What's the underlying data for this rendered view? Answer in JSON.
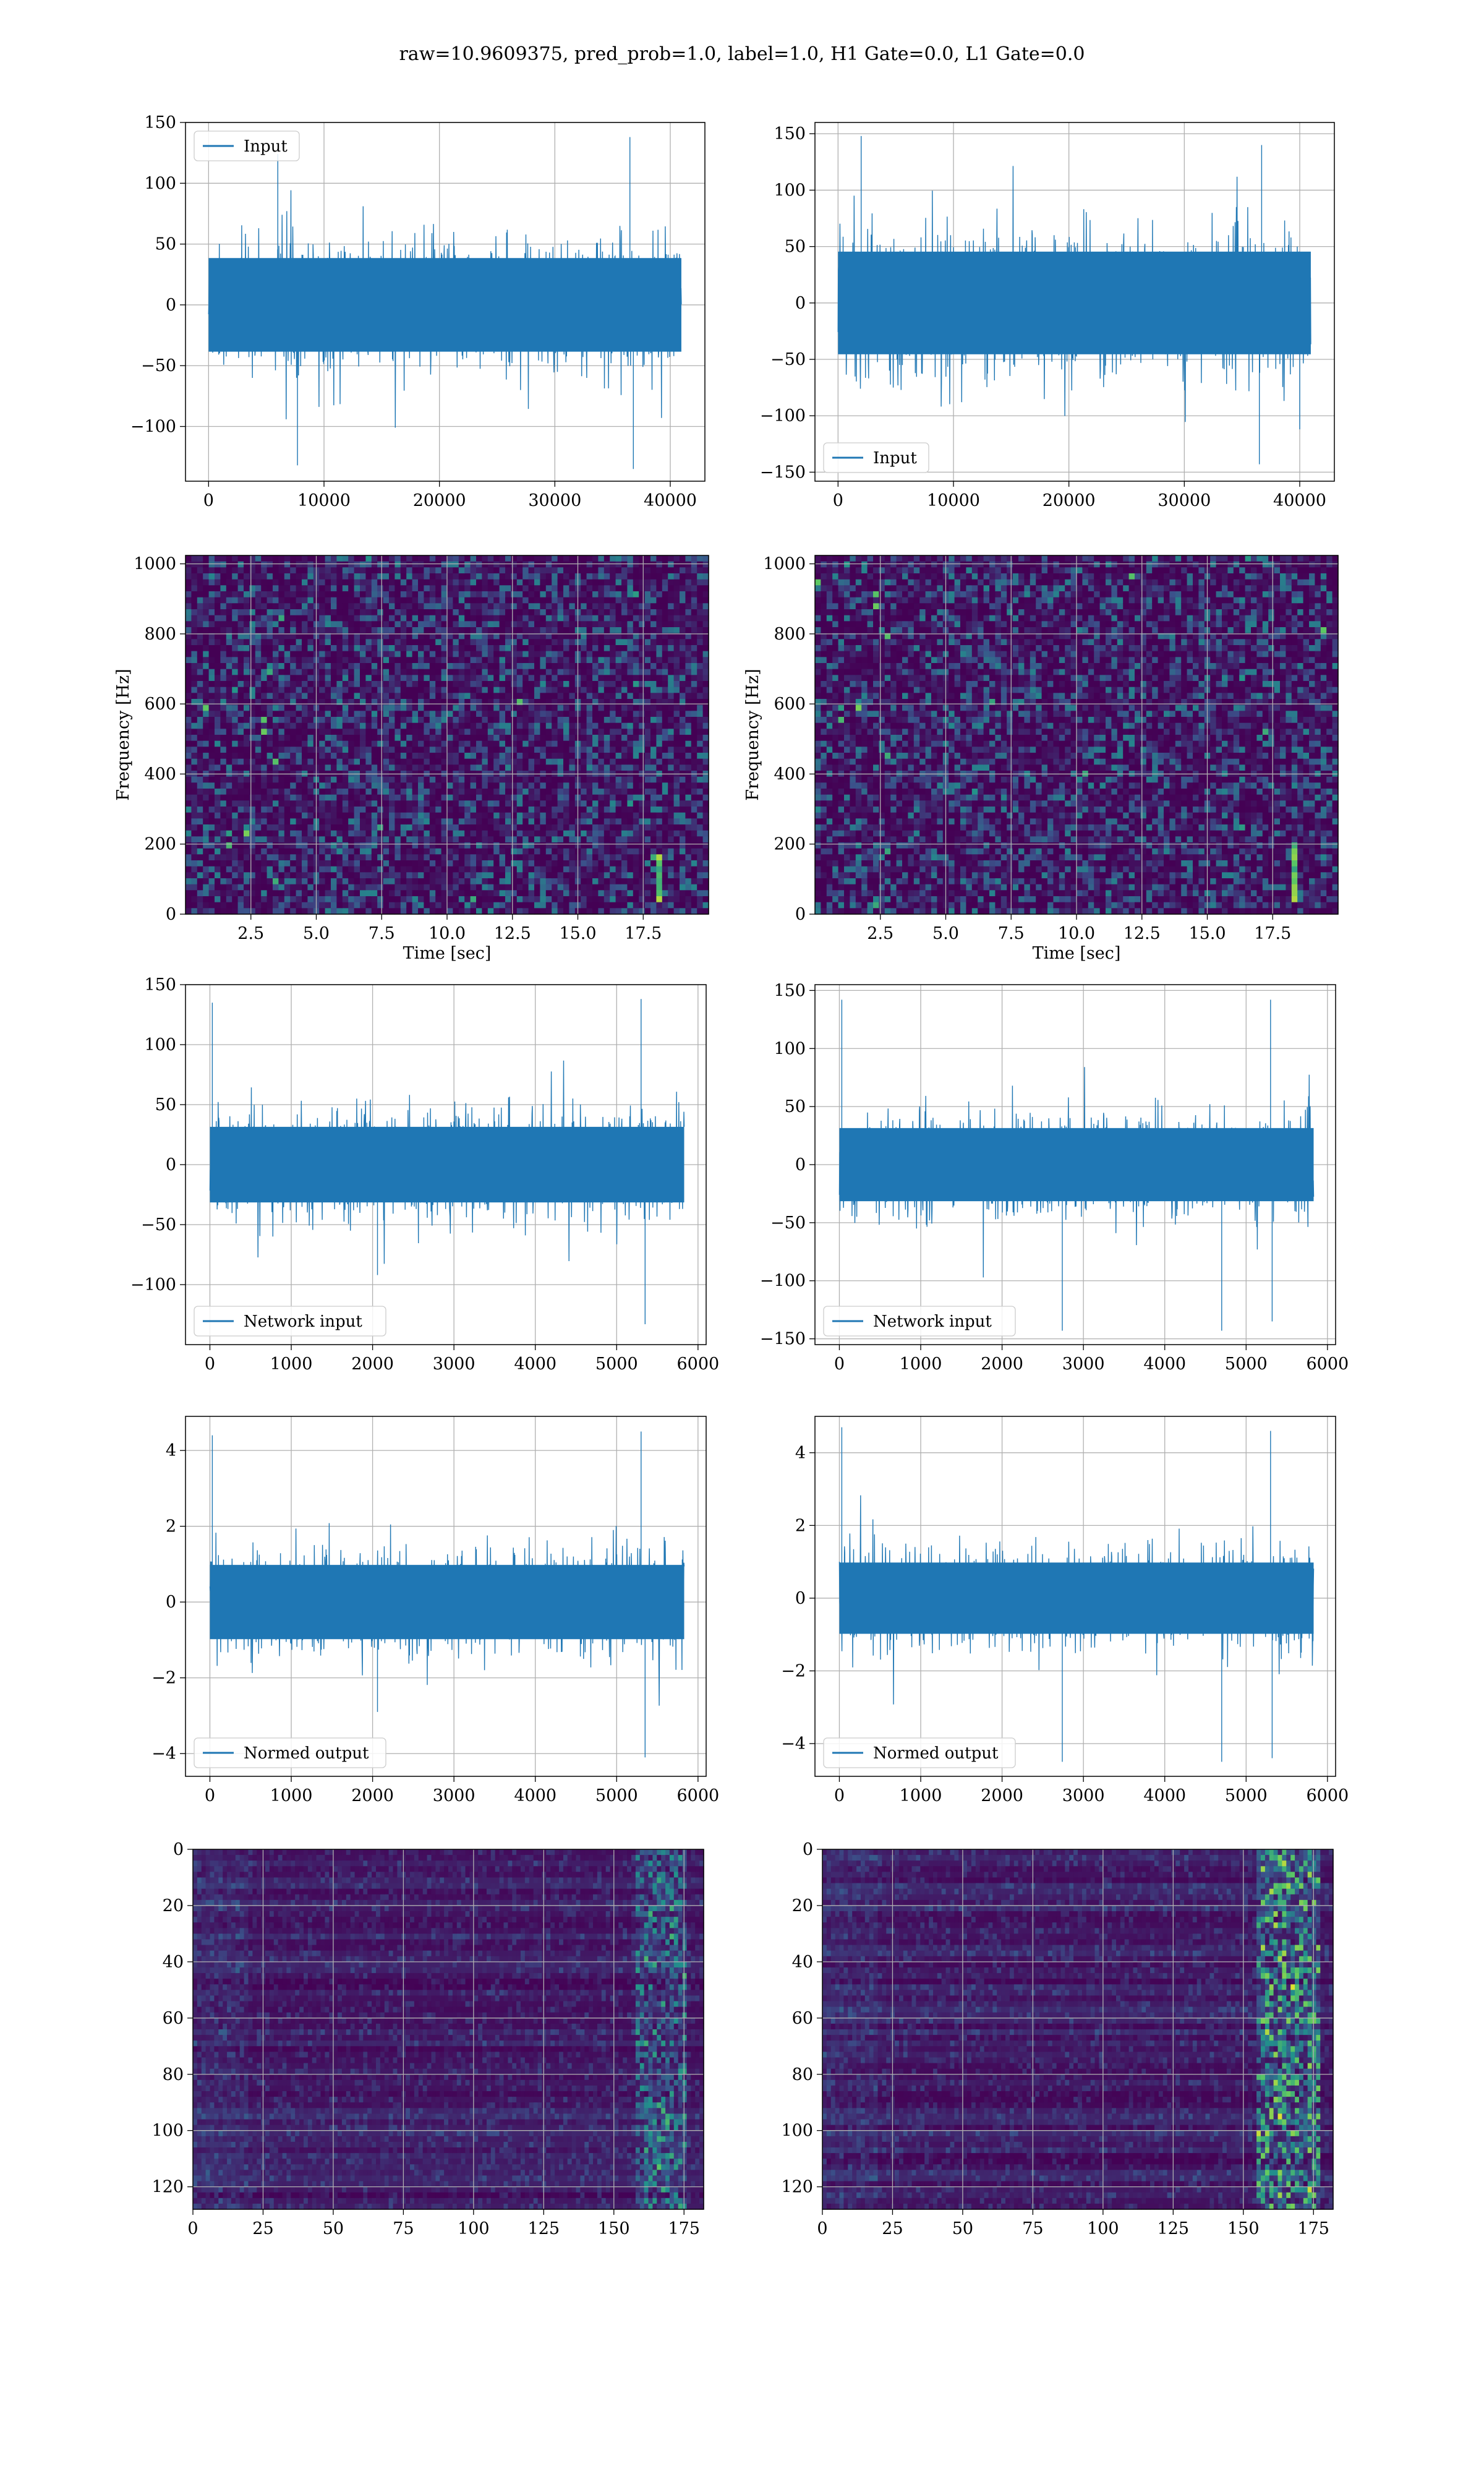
{
  "figure": {
    "suptitle": "raw=10.9609375, pred_prob=1.0, label=1.0, H1 Gate=0.0, L1 Gate=0.0"
  },
  "colors": {
    "line": "#1f77b4",
    "grid": "#b0b0b0",
    "viridis_dark": "#440154",
    "viridis_mid": "#21918c",
    "viridis_light": "#5ec962",
    "viridis_yellow": "#fde725"
  },
  "chart_data": [
    {
      "id": "h1-input",
      "type": "line",
      "title": "",
      "xlabel": "",
      "ylabel": "",
      "legend": "top-left",
      "series": [
        {
          "name": "Input",
          "x_range": [
            0,
            40960
          ],
          "envelope_typical": [
            -55,
            55
          ],
          "peaks": [
            [
              6000,
              124
            ],
            [
              36500,
              138
            ],
            [
              36800,
              -135
            ],
            [
              7700,
              -132
            ]
          ]
        }
      ],
      "xlim": [
        -2000,
        43000
      ],
      "ylim": [
        -145,
        150
      ],
      "xticks": [
        "0",
        "10000",
        "20000",
        "30000",
        "40000"
      ],
      "yticks": [
        "−100",
        "−50",
        "0",
        "50",
        "100",
        "150"
      ]
    },
    {
      "id": "l1-input",
      "type": "line",
      "title": "",
      "xlabel": "",
      "ylabel": "",
      "legend": "bottom-left",
      "series": [
        {
          "name": "Input",
          "x_range": [
            0,
            40960
          ],
          "envelope_typical": [
            -60,
            65
          ],
          "peaks": [
            [
              2000,
              148
            ],
            [
              36700,
              140
            ],
            [
              36500,
              -143
            ],
            [
              40000,
              -112
            ]
          ]
        }
      ],
      "xlim": [
        -2000,
        43000
      ],
      "ylim": [
        -158,
        160
      ],
      "xticks": [
        "0",
        "10000",
        "20000",
        "30000",
        "40000"
      ],
      "yticks": [
        "−150",
        "−100",
        "−50",
        "0",
        "50",
        "100",
        "150"
      ]
    },
    {
      "id": "h1-spectrogram",
      "type": "heatmap",
      "title": "",
      "xlabel": "Time [sec]",
      "ylabel": "Frequency [Hz]",
      "colormap": "viridis",
      "xlim": [
        0,
        20
      ],
      "ylim": [
        0,
        1024
      ],
      "features": [
        {
          "type": "chirp",
          "t": 18.0,
          "f_range": [
            40,
            170
          ]
        }
      ],
      "xticks": [
        "2.5",
        "5.0",
        "7.5",
        "10.0",
        "12.5",
        "15.0",
        "17.5"
      ],
      "yticks": [
        "0",
        "200",
        "400",
        "600",
        "800",
        "1000"
      ]
    },
    {
      "id": "l1-spectrogram",
      "type": "heatmap",
      "title": "",
      "xlabel": "Time [sec]",
      "ylabel": "Frequency [Hz]",
      "colormap": "viridis",
      "xlim": [
        0,
        20
      ],
      "ylim": [
        0,
        1024
      ],
      "features": [
        {
          "type": "chirp",
          "t": 18.2,
          "f_range": [
            30,
            200
          ]
        }
      ],
      "xticks": [
        "2.5",
        "5.0",
        "7.5",
        "10.0",
        "12.5",
        "15.0",
        "17.5"
      ],
      "yticks": [
        "0",
        "200",
        "400",
        "600",
        "800",
        "1000"
      ]
    },
    {
      "id": "h1-network-input",
      "type": "line",
      "title": "",
      "xlabel": "",
      "ylabel": "",
      "legend": "bottom-left",
      "series": [
        {
          "name": "Network input",
          "x_range": [
            0,
            5830
          ],
          "envelope_typical": [
            -40,
            45
          ],
          "peaks": [
            [
              30,
              135
            ],
            [
              5300,
              138
            ],
            [
              5350,
              -133
            ],
            [
              2060,
              -92
            ]
          ]
        }
      ],
      "xlim": [
        -300,
        6100
      ],
      "ylim": [
        -150,
        150
      ],
      "xticks": [
        "0",
        "1000",
        "2000",
        "3000",
        "4000",
        "5000",
        "6000"
      ],
      "yticks": [
        "−100",
        "−50",
        "0",
        "50",
        "100",
        "150"
      ]
    },
    {
      "id": "l1-network-input",
      "type": "line",
      "title": "",
      "xlabel": "",
      "ylabel": "",
      "legend": "bottom-left",
      "series": [
        {
          "name": "Network input",
          "x_range": [
            0,
            5830
          ],
          "envelope_typical": [
            -45,
            45
          ],
          "peaks": [
            [
              30,
              142
            ],
            [
              5300,
              142
            ],
            [
              5320,
              -135
            ],
            [
              2740,
              -143
            ],
            [
              4700,
              -143
            ]
          ]
        }
      ],
      "xlim": [
        -300,
        6100
      ],
      "ylim": [
        -155,
        155
      ],
      "xticks": [
        "0",
        "1000",
        "2000",
        "3000",
        "4000",
        "5000",
        "6000"
      ],
      "yticks": [
        "−150",
        "−100",
        "−50",
        "0",
        "50",
        "100",
        "150"
      ]
    },
    {
      "id": "h1-normed-output",
      "type": "line",
      "title": "",
      "xlabel": "",
      "ylabel": "",
      "legend": "bottom-left",
      "series": [
        {
          "name": "Normed output",
          "x_range": [
            0,
            5830
          ],
          "envelope_typical": [
            -1.3,
            1.4
          ],
          "peaks": [
            [
              30,
              4.4
            ],
            [
              5300,
              4.5
            ],
            [
              5350,
              -4.1
            ],
            [
              2060,
              -2.9
            ]
          ]
        }
      ],
      "xlim": [
        -300,
        6100
      ],
      "ylim": [
        -4.6,
        4.9
      ],
      "xticks": [
        "0",
        "1000",
        "2000",
        "3000",
        "4000",
        "5000",
        "6000"
      ],
      "yticks": [
        "−4",
        "−2",
        "0",
        "2",
        "4"
      ]
    },
    {
      "id": "l1-normed-output",
      "type": "line",
      "title": "",
      "xlabel": "",
      "ylabel": "",
      "legend": "bottom-left",
      "series": [
        {
          "name": "Normed output",
          "x_range": [
            0,
            5830
          ],
          "envelope_typical": [
            -1.4,
            1.4
          ],
          "peaks": [
            [
              30,
              4.7
            ],
            [
              5300,
              4.6
            ],
            [
              5320,
              -4.4
            ],
            [
              2740,
              -4.5
            ],
            [
              4700,
              -4.5
            ]
          ]
        }
      ],
      "xlim": [
        -300,
        6100
      ],
      "ylim": [
        -4.9,
        5.0
      ],
      "xticks": [
        "0",
        "1000",
        "2000",
        "3000",
        "4000",
        "5000",
        "6000"
      ],
      "yticks": [
        "−4",
        "−2",
        "0",
        "2",
        "4"
      ]
    },
    {
      "id": "h1-feature-map",
      "type": "heatmap",
      "title": "",
      "xlabel": "",
      "ylabel": "",
      "colormap": "viridis",
      "xlim": [
        0,
        182
      ],
      "ylim": [
        128,
        0
      ],
      "features": [
        {
          "type": "band",
          "x_range": [
            158,
            176
          ],
          "intensity": "medium"
        }
      ],
      "xticks": [
        "0",
        "25",
        "50",
        "75",
        "100",
        "125",
        "150",
        "175"
      ],
      "yticks": [
        "0",
        "20",
        "40",
        "60",
        "80",
        "100",
        "120"
      ]
    },
    {
      "id": "l1-feature-map",
      "type": "heatmap",
      "title": "",
      "xlabel": "",
      "ylabel": "",
      "colormap": "viridis",
      "xlim": [
        0,
        182
      ],
      "ylim": [
        128,
        0
      ],
      "features": [
        {
          "type": "band",
          "x_range": [
            155,
            177
          ],
          "intensity": "high"
        }
      ],
      "xticks": [
        "0",
        "25",
        "50",
        "75",
        "100",
        "125",
        "150",
        "175"
      ],
      "yticks": [
        "0",
        "20",
        "40",
        "60",
        "80",
        "100",
        "120"
      ]
    }
  ]
}
